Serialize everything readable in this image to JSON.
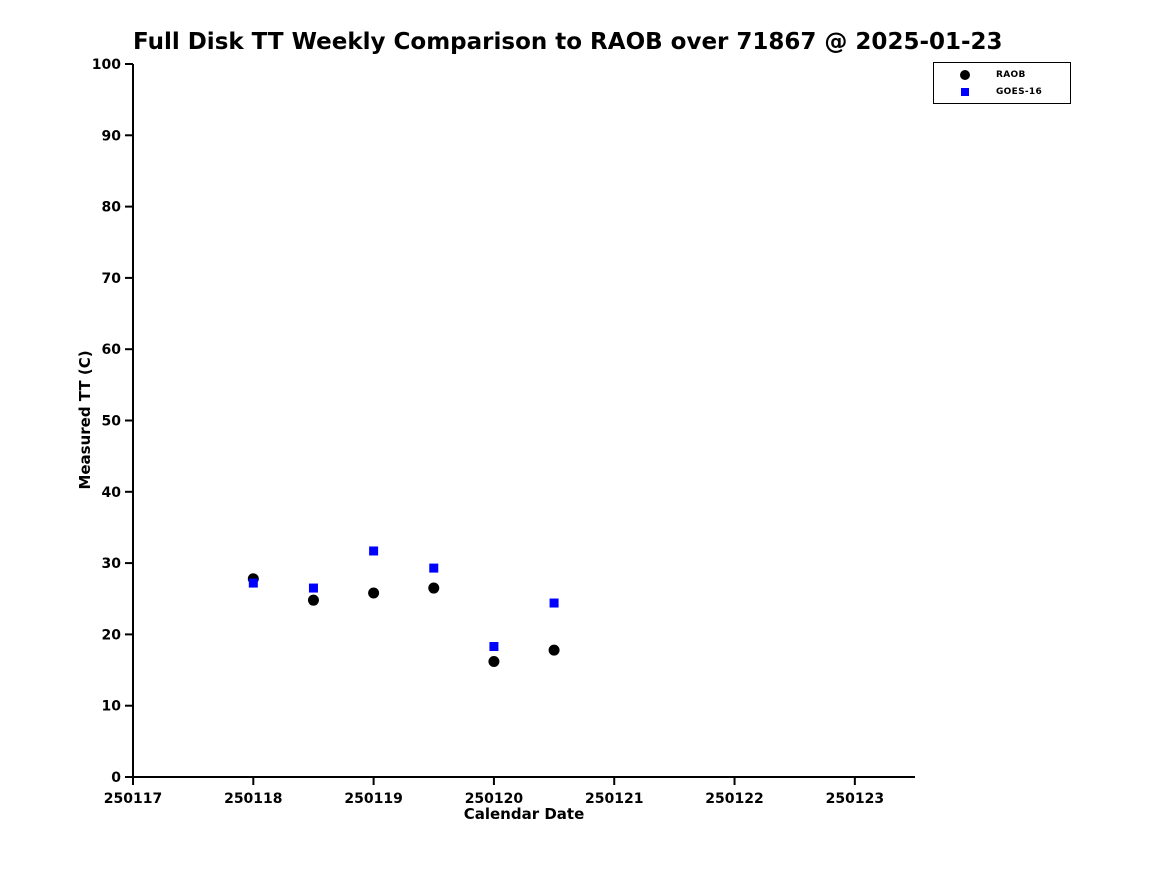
{
  "chart_data": {
    "type": "scatter",
    "title": "Full Disk TT Weekly Comparison to RAOB over 71867 @ 2025-01-23",
    "xlabel": "Calendar Date",
    "ylabel": "Measured TT (C)",
    "xlim": [
      250117,
      250123.5
    ],
    "ylim": [
      0,
      100
    ],
    "xticks": [
      250117,
      250118,
      250119,
      250120,
      250121,
      250122,
      250123
    ],
    "yticks": [
      0,
      10,
      20,
      30,
      40,
      50,
      60,
      70,
      80,
      90,
      100
    ],
    "grid": false,
    "legend_position": "top-right",
    "x": [
      250118,
      250118.5,
      250119,
      250119.5,
      250120,
      250120.5
    ],
    "series": [
      {
        "name": "RAOB",
        "marker": "circle",
        "color": "#000000",
        "values": [
          27.8,
          24.8,
          25.8,
          26.5,
          16.2,
          17.8
        ]
      },
      {
        "name": "GOES-16",
        "marker": "square",
        "color": "#0000ff",
        "values": [
          27.2,
          26.5,
          31.7,
          29.3,
          18.3,
          24.4
        ]
      }
    ]
  }
}
